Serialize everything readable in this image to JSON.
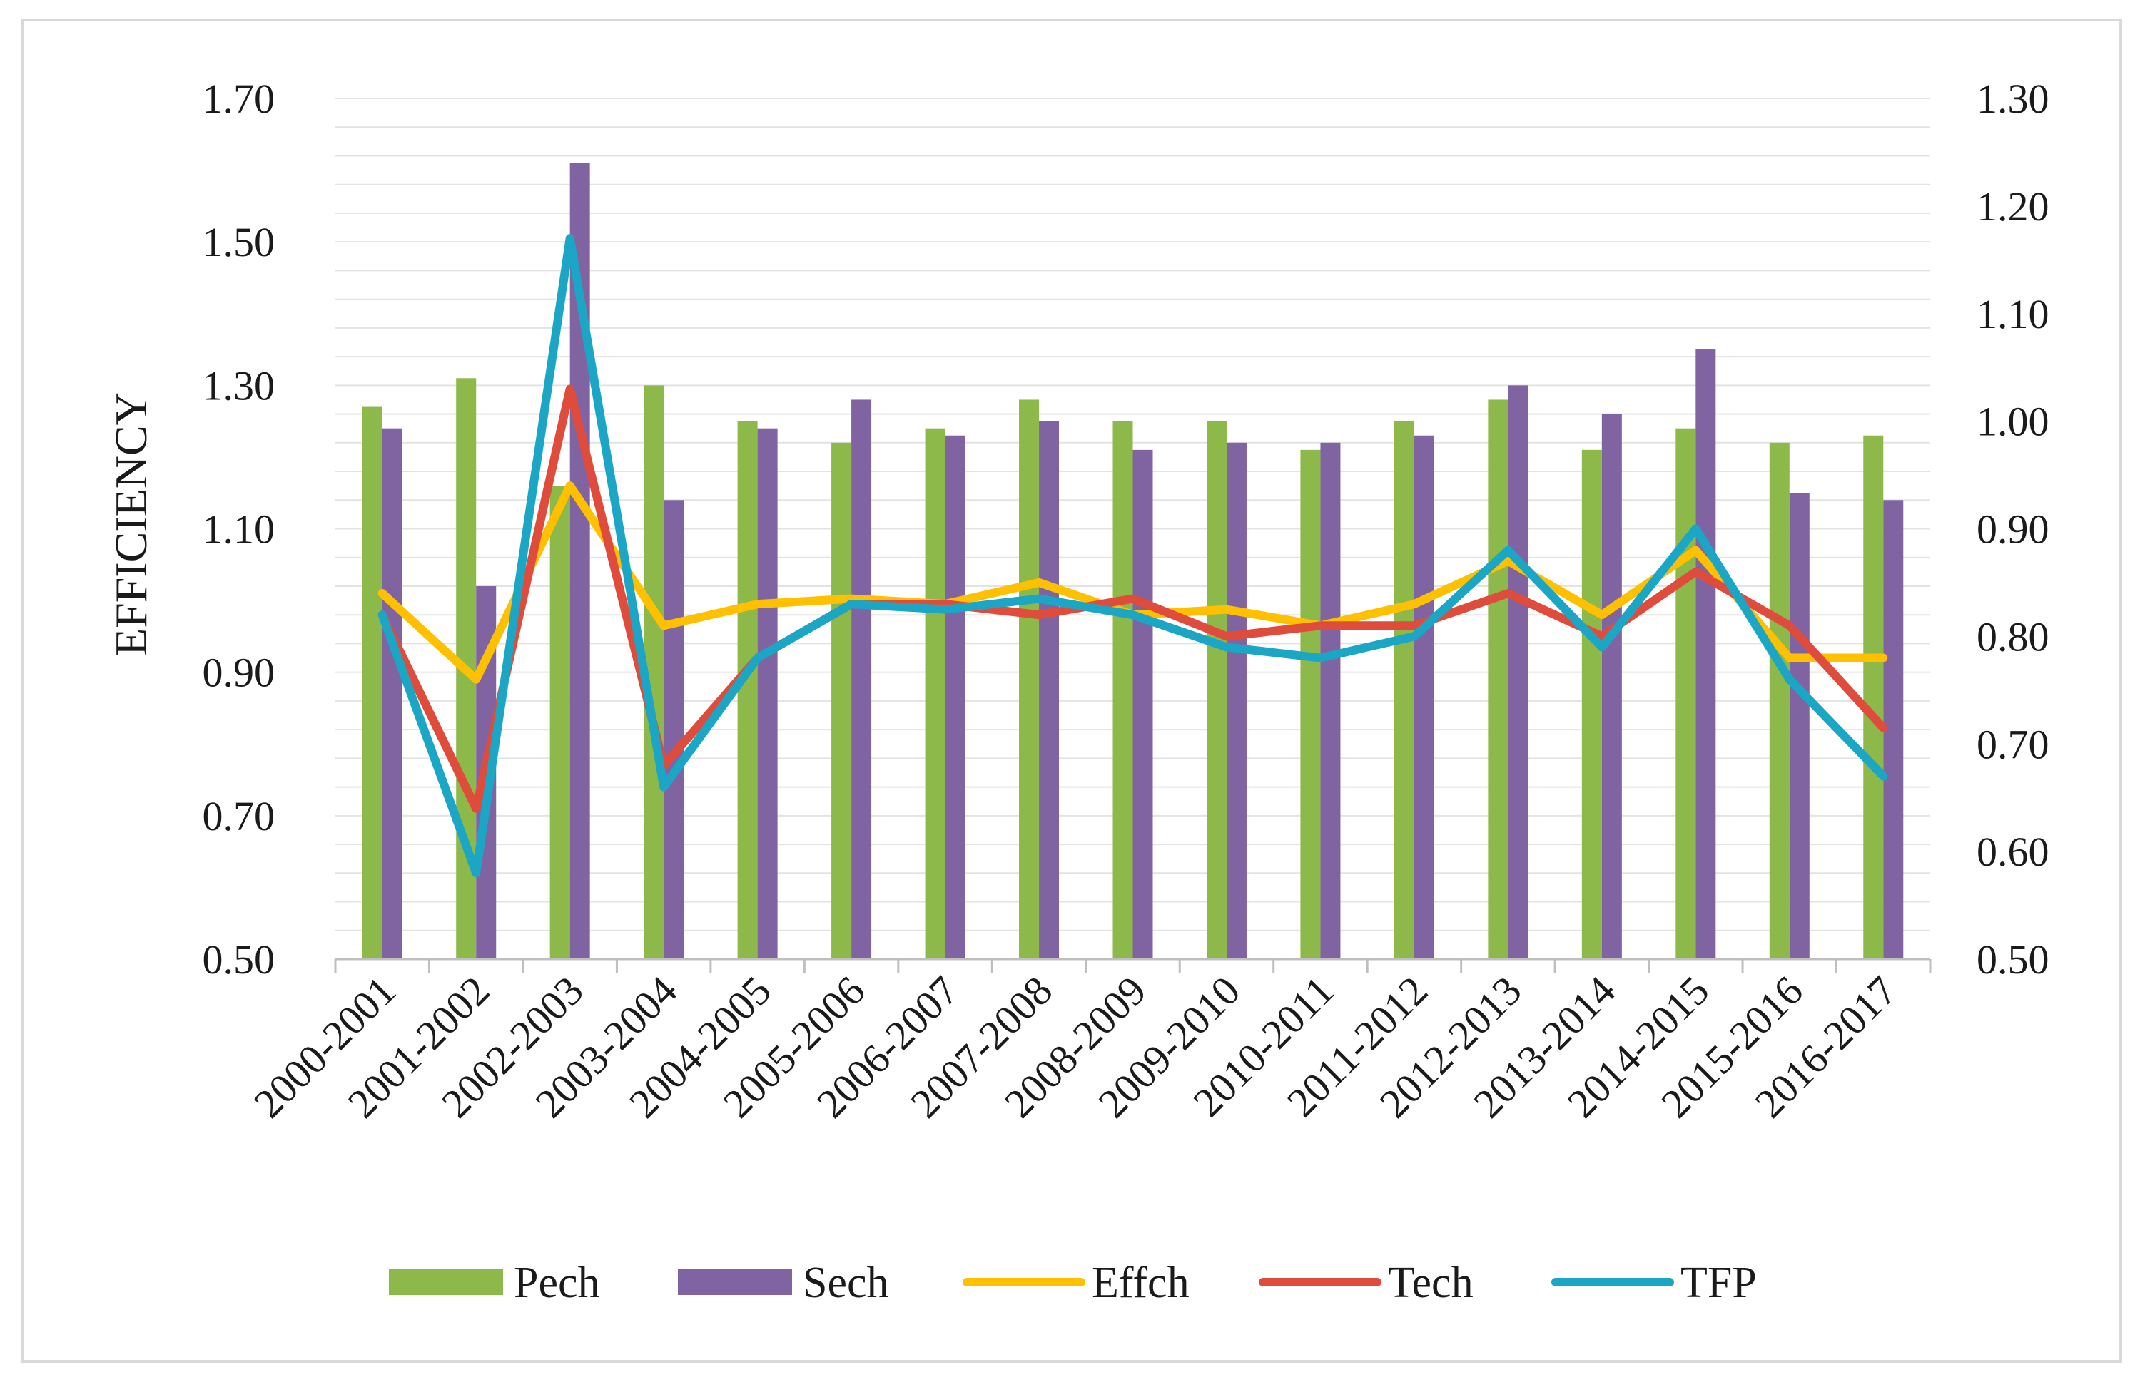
{
  "chart_data": {
    "type": "bar",
    "title": "",
    "xlabel": "",
    "ylabel": "EFFICIENCY",
    "categories": [
      "2000-2001",
      "2001-2002",
      "2002-2003",
      "2003-2004",
      "2004-2005",
      "2005-2006",
      "2006-2007",
      "2007-2008",
      "2008-2009",
      "2009-2010",
      "2010-2011",
      "2011-2012",
      "2012-2013",
      "2013-2014",
      "2014-2015",
      "2015-2016",
      "2016-2017"
    ],
    "y_left": {
      "ylim": [
        0.5,
        1.7
      ],
      "ticks": [
        "0.50",
        "0.70",
        "0.90",
        "1.10",
        "1.30",
        "1.50",
        "1.70"
      ]
    },
    "y_right": {
      "ylim": [
        0.5,
        1.3
      ],
      "ticks": [
        "0.50",
        "0.60",
        "0.70",
        "0.80",
        "0.90",
        "1.00",
        "1.10",
        "1.20",
        "1.30"
      ]
    },
    "grid": true,
    "legend_position": "bottom",
    "series": [
      {
        "name": "Pech",
        "kind": "bar",
        "axis": "left",
        "color": "#8db84a",
        "values": [
          1.27,
          1.31,
          1.16,
          1.3,
          1.25,
          1.22,
          1.24,
          1.28,
          1.25,
          1.25,
          1.21,
          1.25,
          1.28,
          1.21,
          1.24,
          1.22,
          1.23
        ]
      },
      {
        "name": "Sech",
        "kind": "bar",
        "axis": "left",
        "color": "#8064a2",
        "values": [
          1.24,
          1.02,
          1.61,
          1.14,
          1.24,
          1.28,
          1.23,
          1.25,
          1.21,
          1.22,
          1.22,
          1.23,
          1.3,
          1.26,
          1.35,
          1.15,
          1.14
        ]
      },
      {
        "name": "Effch",
        "kind": "line",
        "axis": "right",
        "color": "#ffc000",
        "values": [
          0.84,
          0.76,
          0.94,
          0.81,
          0.83,
          0.835,
          0.83,
          0.85,
          0.82,
          0.825,
          0.81,
          0.83,
          0.87,
          0.82,
          0.88,
          0.78,
          0.78
        ]
      },
      {
        "name": "Tech",
        "kind": "line",
        "axis": "right",
        "color": "#e04c3c",
        "values": [
          0.82,
          0.64,
          1.03,
          0.68,
          0.78,
          0.83,
          0.83,
          0.82,
          0.835,
          0.8,
          0.81,
          0.81,
          0.84,
          0.8,
          0.86,
          0.81,
          0.715
        ]
      },
      {
        "name": "TFP",
        "kind": "line",
        "axis": "right",
        "color": "#1aa6c4",
        "values": [
          0.82,
          0.58,
          1.17,
          0.66,
          0.78,
          0.83,
          0.825,
          0.835,
          0.82,
          0.79,
          0.78,
          0.8,
          0.88,
          0.79,
          0.9,
          0.76,
          0.67
        ]
      }
    ]
  }
}
